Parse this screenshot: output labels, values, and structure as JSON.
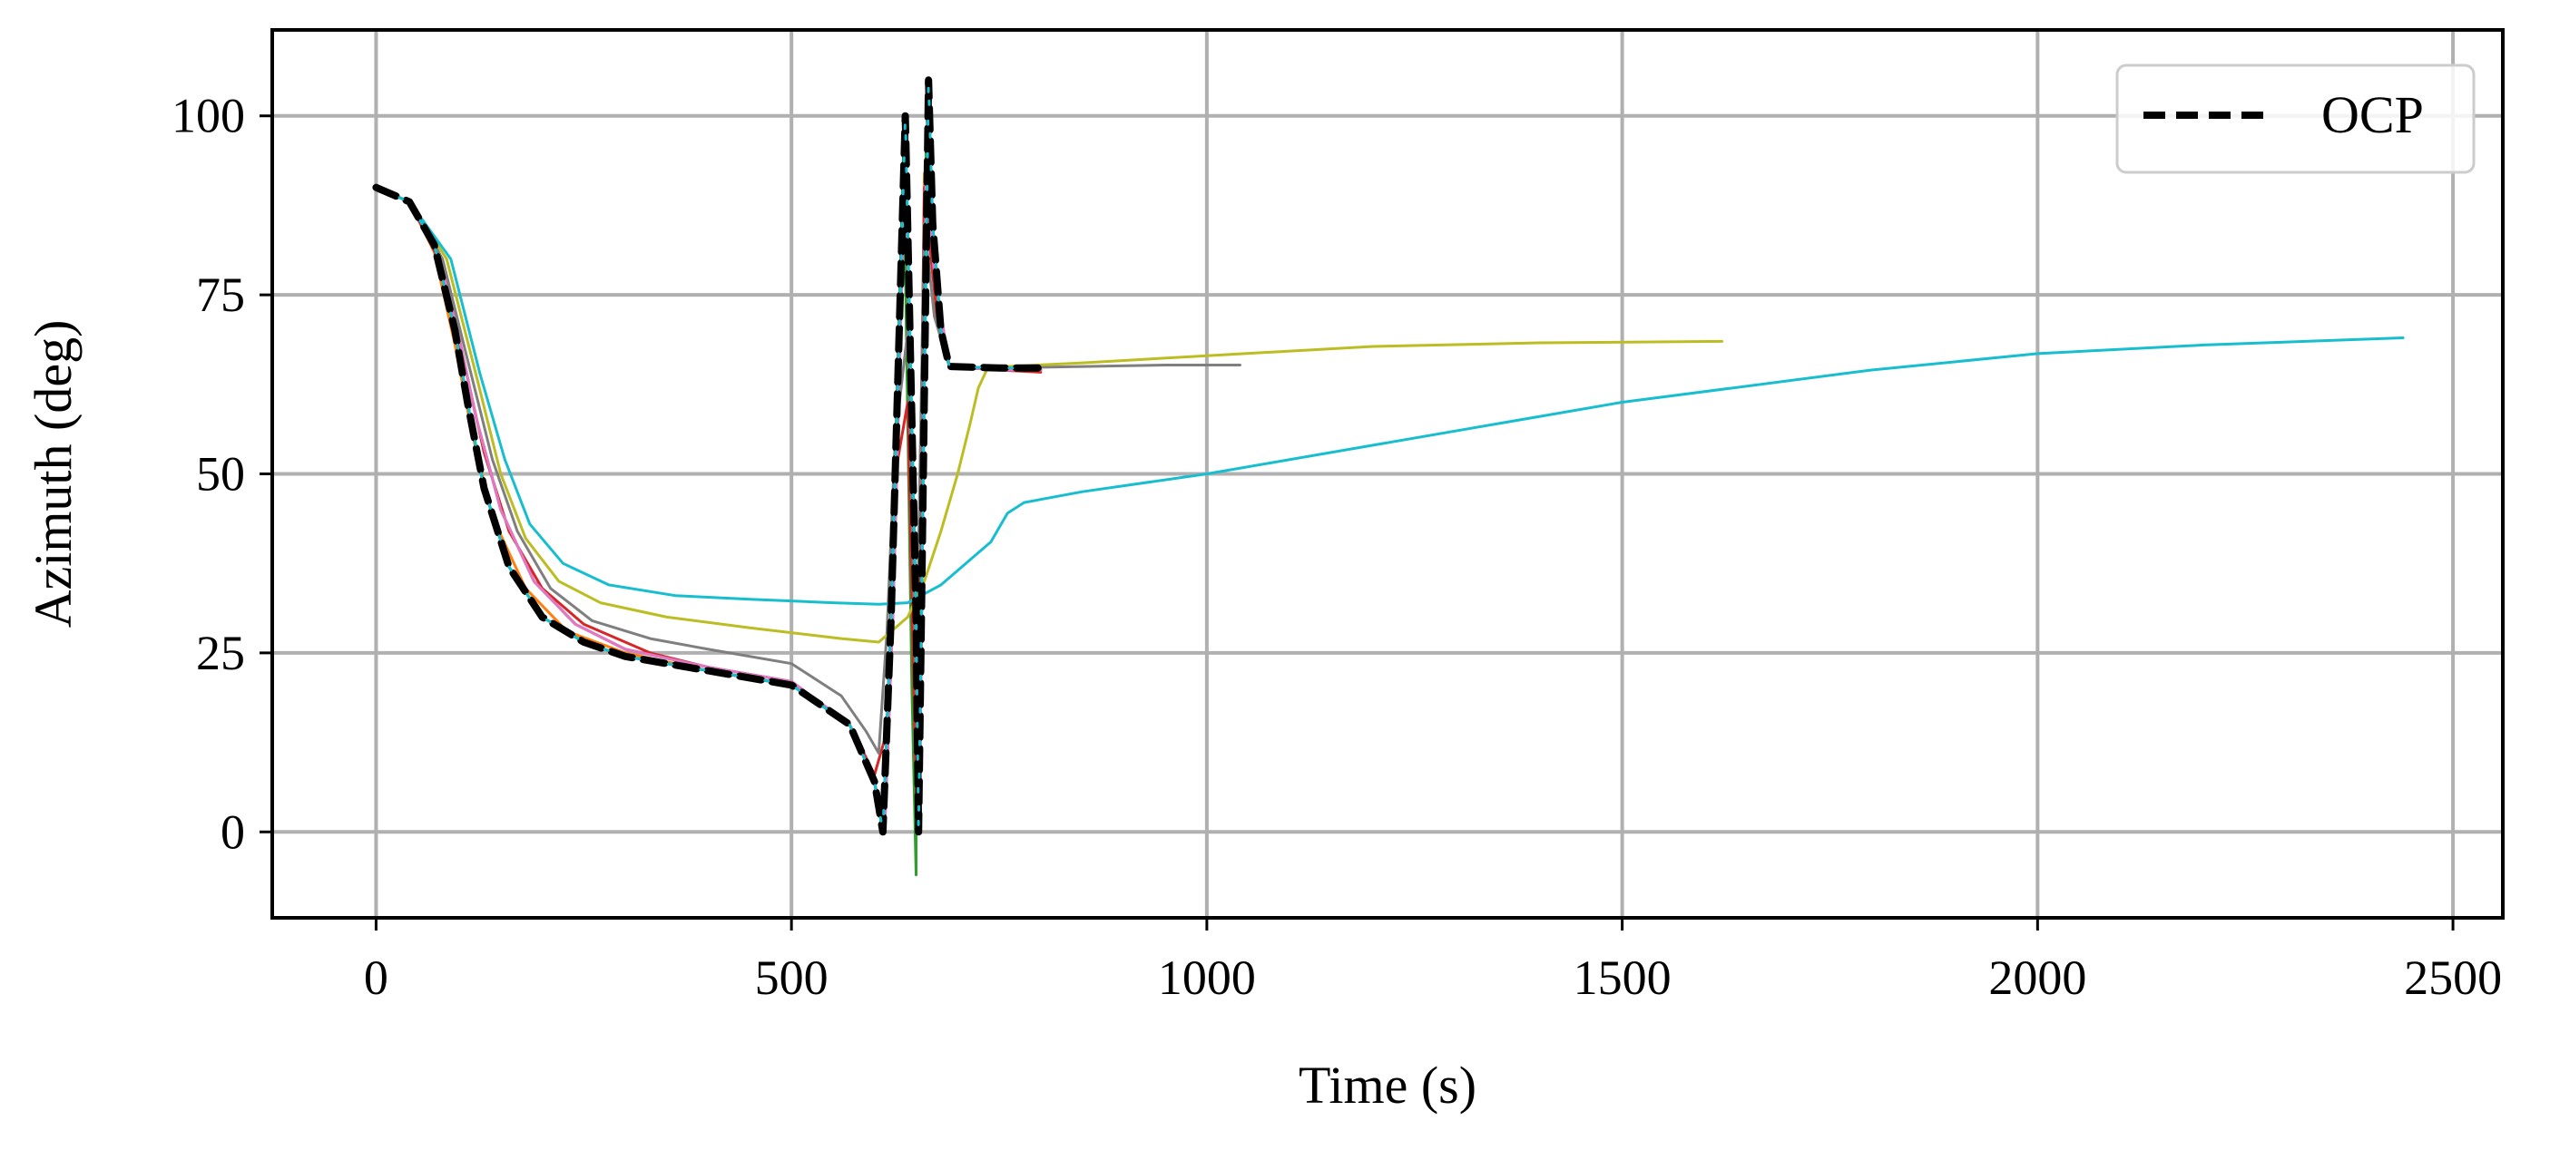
{
  "chart_data": {
    "type": "line",
    "title": "",
    "xlabel": "Time (s)",
    "ylabel": "Azimuth (deg)",
    "xlim": [
      -125,
      2560
    ],
    "ylim": [
      -12,
      112
    ],
    "xticks": [
      0,
      500,
      1000,
      1500,
      2000,
      2500
    ],
    "yticks": [
      0,
      25,
      50,
      75,
      100
    ],
    "grid": true,
    "legend": {
      "position": "top-right",
      "entries": [
        "OCP"
      ]
    },
    "series": [
      {
        "name": "",
        "color": "#1f77b4",
        "x": [
          0,
          40,
          70,
          95,
          110,
          130,
          160,
          200,
          250,
          300,
          400,
          500,
          570,
          600,
          610,
          620,
          635,
          648,
          652,
          660,
          670,
          690,
          750,
          780
        ],
        "y": [
          90,
          88,
          82,
          70,
          60,
          48,
          37,
          30,
          26.5,
          24.5,
          22.5,
          20.5,
          15,
          7,
          0,
          30,
          95,
          30,
          0,
          90,
          78,
          65,
          64.5,
          64.5
        ]
      },
      {
        "name": "",
        "color": "#ff7f0e",
        "x": [
          0,
          40,
          70,
          95,
          115,
          140,
          180,
          230,
          300,
          400,
          500,
          570,
          600,
          610,
          620,
          635,
          648,
          652,
          660,
          670,
          690,
          750,
          790
        ],
        "y": [
          90,
          88,
          81,
          68,
          56,
          44,
          34,
          28,
          25,
          22.5,
          20.5,
          15,
          7,
          0,
          30,
          95,
          30,
          0,
          92,
          78,
          65,
          64.5,
          64.5
        ]
      },
      {
        "name": "",
        "color": "#2ca02c",
        "x": [
          0,
          40,
          70,
          95,
          110,
          130,
          160,
          200,
          250,
          300,
          400,
          500,
          570,
          600,
          610,
          620,
          635,
          645,
          650,
          650,
          655,
          662,
          672,
          690,
          750,
          800
        ],
        "y": [
          90,
          88,
          82,
          70,
          60,
          48,
          37,
          30,
          26.5,
          24.5,
          22.5,
          20.5,
          15,
          7,
          0,
          30,
          95,
          20,
          -6,
          0,
          40,
          95,
          78,
          65,
          64.5,
          64.5
        ]
      },
      {
        "name": "",
        "color": "#d62728",
        "x": [
          0,
          40,
          75,
          105,
          130,
          160,
          200,
          250,
          330,
          400,
          500,
          570,
          600,
          615,
          625,
          640,
          650,
          660,
          675,
          690,
          750,
          800
        ],
        "y": [
          90,
          88,
          80,
          66,
          53,
          42,
          34,
          29,
          25,
          23,
          21,
          15,
          8,
          14,
          50,
          60,
          5,
          90,
          72,
          65,
          64.5,
          64.2
        ]
      },
      {
        "name": "",
        "color": "#9467bd",
        "x": [
          0,
          40,
          75,
          100,
          120,
          150,
          190,
          240,
          300,
          400,
          500,
          570,
          600,
          612,
          622,
          637,
          650,
          654,
          662,
          672,
          690,
          750,
          800
        ],
        "y": [
          90,
          88,
          81,
          69,
          58,
          45,
          35,
          29,
          25.5,
          23,
          21,
          15,
          7,
          0,
          30,
          95,
          30,
          0,
          92,
          78,
          65,
          64.5,
          64.5
        ]
      },
      {
        "name": "",
        "color": "#8c564b",
        "x": [
          0,
          40,
          75,
          100,
          120,
          150,
          190,
          240,
          300,
          400,
          500,
          570,
          600,
          612,
          622,
          637,
          650,
          654,
          662,
          672,
          690,
          750,
          800
        ],
        "y": [
          90,
          88,
          81,
          69,
          58,
          45,
          35,
          29,
          25.5,
          23,
          21,
          15,
          7,
          0,
          30,
          95,
          30,
          0,
          92,
          78,
          65,
          64.5,
          64.5
        ]
      },
      {
        "name": "",
        "color": "#e377c2",
        "x": [
          0,
          40,
          75,
          100,
          120,
          150,
          190,
          240,
          300,
          400,
          500,
          570,
          600,
          612,
          622,
          637,
          650,
          654,
          662,
          672,
          690,
          750,
          800
        ],
        "y": [
          90,
          88,
          81,
          69,
          58,
          45,
          35,
          29,
          25.5,
          23,
          21,
          15,
          7,
          0,
          30,
          95,
          30,
          0,
          92,
          78,
          65,
          64.5,
          64.5
        ]
      },
      {
        "name": "",
        "color": "#7f7f7f",
        "x": [
          0,
          40,
          80,
          110,
          140,
          170,
          210,
          260,
          330,
          400,
          500,
          560,
          590,
          605,
          615,
          625,
          640,
          650,
          660,
          672,
          690,
          750,
          850,
          950,
          1040
        ],
        "y": [
          90,
          88,
          80,
          66,
          52,
          42,
          34,
          29.5,
          27,
          25.5,
          23.5,
          19,
          14,
          11,
          28,
          55,
          70,
          20,
          85,
          72,
          65,
          64.8,
          65,
          65.2,
          65.2
        ]
      },
      {
        "name": "",
        "color": "#bcbd22",
        "x": [
          0,
          40,
          85,
          120,
          150,
          180,
          220,
          270,
          350,
          450,
          560,
          605,
          620,
          640,
          660,
          680,
          700,
          715,
          725,
          735,
          760,
          850,
          1000,
          1200,
          1400,
          1620
        ],
        "y": [
          90,
          88,
          80,
          64,
          50,
          41,
          35,
          32,
          30,
          28.5,
          27,
          26.5,
          28,
          30,
          35,
          42,
          50,
          57,
          62,
          64.5,
          65,
          65.5,
          66.5,
          67.8,
          68.3,
          68.5
        ]
      },
      {
        "name": "",
        "color": "#17becf",
        "x": [
          0,
          40,
          90,
          125,
          155,
          185,
          225,
          280,
          360,
          450,
          550,
          605,
          640,
          680,
          720,
          740,
          750,
          760,
          780,
          850,
          1000,
          1200,
          1500,
          1800,
          2000,
          2200,
          2440
        ],
        "y": [
          90,
          88,
          80,
          64,
          52,
          43,
          37.5,
          34.5,
          33,
          32.5,
          32,
          31.8,
          32,
          34.5,
          38.5,
          40.5,
          42.5,
          44.5,
          46,
          47.5,
          50,
          54,
          60,
          64.5,
          66.8,
          68,
          69
        ]
      },
      {
        "name": "OCP",
        "color": "#000000",
        "x": [
          0,
          40,
          70,
          95,
          110,
          130,
          160,
          200,
          250,
          300,
          400,
          500,
          570,
          600,
          610,
          620,
          637,
          650,
          653,
          665,
          670,
          680,
          690,
          750,
          800
        ],
        "y": [
          90,
          88,
          82,
          70,
          60,
          48,
          37,
          30,
          26.5,
          24.5,
          22.5,
          20.5,
          15,
          7,
          0,
          30,
          100,
          30,
          0,
          105,
          85,
          70,
          65,
          64.8,
          64.8
        ]
      }
    ]
  }
}
